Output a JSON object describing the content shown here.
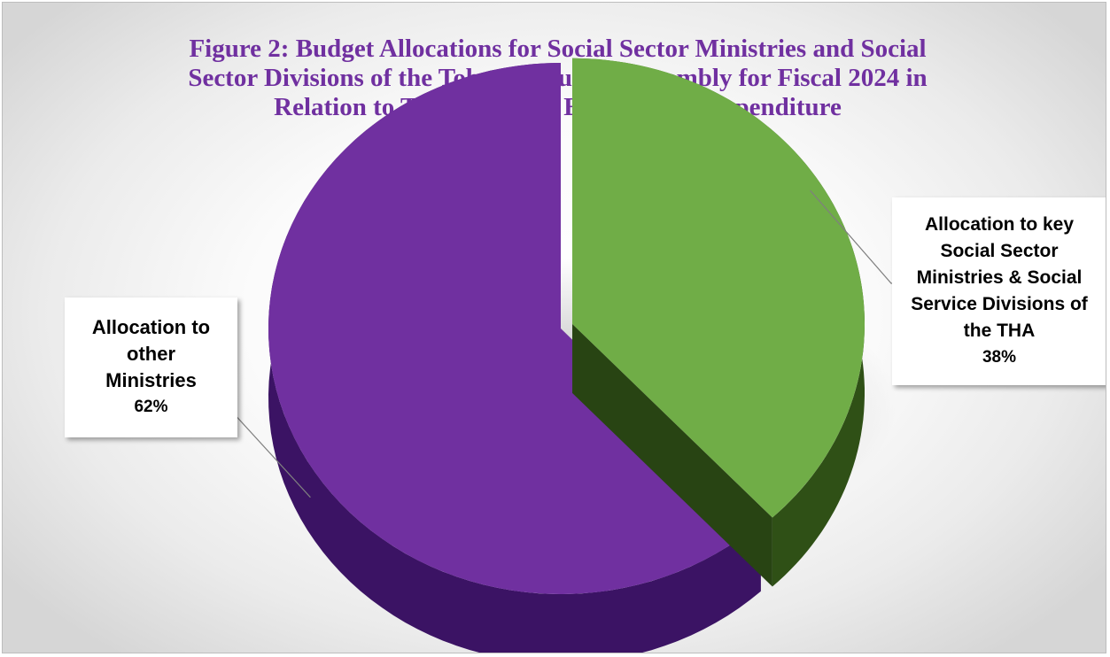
{
  "title_lines": [
    "Figure 2: Budget Allocations for Social Sector Ministries and Social",
    "Sector Divisions of the Tobago House of Assembly for Fiscal 2024 in",
    "Relation to Total National Estimates of Expenditure"
  ],
  "chart_data": {
    "type": "pie",
    "title": "Figure 2: Budget Allocations for Social Sector Ministries and Social Sector Divisions of the Tobago House of Assembly for Fiscal 2024 in Relation to Total National Estimates of Expenditure",
    "slices": [
      {
        "label_lines": [
          "Allocation to key",
          "Social Sector",
          "Ministries & Social",
          "Service Divisions of",
          "the THA"
        ],
        "percent_label": "38%",
        "value": 38,
        "color": "#70ad47",
        "side_color": "#2f5016",
        "exploded": true
      },
      {
        "label_lines": [
          "Allocation to",
          "other",
          "Ministries"
        ],
        "percent_label": "62%",
        "value": 62,
        "color": "#7030a0",
        "side_color": "#3b1364",
        "exploded": false
      }
    ],
    "style": "3d-pie"
  }
}
